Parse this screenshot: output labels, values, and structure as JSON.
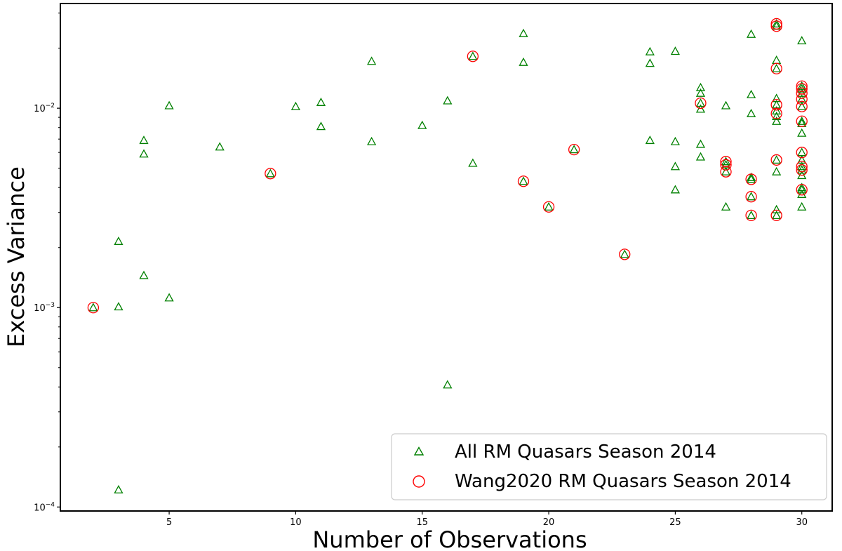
{
  "chart_data": {
    "type": "scatter",
    "title": "",
    "xlabel": "Number of Observations",
    "ylabel": "Excess Variance",
    "xlim": [
      0.7,
      31.2
    ],
    "ylim": [
      9.55e-05,
      0.0335
    ],
    "yscale": "log",
    "grid": false,
    "legend_position": "bottom-right",
    "x_ticks": [
      5,
      10,
      15,
      20,
      25,
      30
    ],
    "y_ticks": [
      {
        "value": 0.0001,
        "base": "10",
        "exponent": "−4"
      },
      {
        "value": 0.001,
        "base": "10",
        "exponent": "−3"
      },
      {
        "value": 0.01,
        "base": "10",
        "exponent": "−2"
      }
    ],
    "series": [
      {
        "name": "All RM Quasars Season 2014",
        "marker": "triangle-open",
        "color": "#008000",
        "points": [
          [
            2,
            0.001
          ],
          [
            3,
            0.00215
          ],
          [
            3,
            0.00101
          ],
          [
            3,
            0.000122
          ],
          [
            4,
            0.0069
          ],
          [
            4,
            0.0059
          ],
          [
            4,
            0.00145
          ],
          [
            5,
            0.0103
          ],
          [
            5,
            0.00112
          ],
          [
            7,
            0.0064
          ],
          [
            9,
            0.0047
          ],
          [
            10,
            0.0102
          ],
          [
            11,
            0.0107
          ],
          [
            11,
            0.0081
          ],
          [
            13,
            0.0172
          ],
          [
            13,
            0.0068
          ],
          [
            15,
            0.0082
          ],
          [
            16,
            0.0109
          ],
          [
            16,
            0.00041
          ],
          [
            17,
            0.0182
          ],
          [
            17,
            0.0053
          ],
          [
            19,
            0.0237
          ],
          [
            19,
            0.017
          ],
          [
            19,
            0.0043
          ],
          [
            20,
            0.0032
          ],
          [
            21,
            0.0062
          ],
          [
            23,
            0.00185
          ],
          [
            24,
            0.0192
          ],
          [
            24,
            0.0168
          ],
          [
            24,
            0.0069
          ],
          [
            25,
            0.0193
          ],
          [
            25,
            0.0068
          ],
          [
            25,
            0.0051
          ],
          [
            25,
            0.0039
          ],
          [
            26,
            0.0127
          ],
          [
            26,
            0.0119
          ],
          [
            26,
            0.0106
          ],
          [
            26,
            0.0099
          ],
          [
            26,
            0.0066
          ],
          [
            26,
            0.0057
          ],
          [
            27,
            0.0103
          ],
          [
            27,
            0.0054
          ],
          [
            27,
            0.0052
          ],
          [
            27,
            0.0048
          ],
          [
            27,
            0.0032
          ],
          [
            28,
            0.0235
          ],
          [
            28,
            0.0117
          ],
          [
            28,
            0.0094
          ],
          [
            28,
            0.0045
          ],
          [
            28,
            0.0044
          ],
          [
            28,
            0.0036
          ],
          [
            28,
            0.0029
          ],
          [
            29,
            0.0265
          ],
          [
            29,
            0.0258
          ],
          [
            29,
            0.0174
          ],
          [
            29,
            0.0158
          ],
          [
            29,
            0.0112
          ],
          [
            29,
            0.0104
          ],
          [
            29,
            0.0097
          ],
          [
            29,
            0.0091
          ],
          [
            29,
            0.0086
          ],
          [
            29,
            0.0055
          ],
          [
            29,
            0.0048
          ],
          [
            29,
            0.0031
          ],
          [
            29,
            0.0029
          ],
          [
            30,
            0.0218
          ],
          [
            30,
            0.0129
          ],
          [
            30,
            0.0125
          ],
          [
            30,
            0.0119
          ],
          [
            30,
            0.0111
          ],
          [
            30,
            0.0102
          ],
          [
            30,
            0.0086
          ],
          [
            30,
            0.0084
          ],
          [
            30,
            0.0075
          ],
          [
            30,
            0.006
          ],
          [
            30,
            0.0055
          ],
          [
            30,
            0.0051
          ],
          [
            30,
            0.0049
          ],
          [
            30,
            0.0046
          ],
          [
            30,
            0.004
          ],
          [
            30,
            0.0039
          ],
          [
            30,
            0.0037
          ],
          [
            30,
            0.0032
          ]
        ]
      },
      {
        "name": "Wang2020 RM Quasars Season 2014",
        "marker": "circle-open",
        "color": "#ff0000",
        "points": [
          [
            2,
            0.001
          ],
          [
            9,
            0.0047
          ],
          [
            17,
            0.0182
          ],
          [
            19,
            0.0043
          ],
          [
            20,
            0.0032
          ],
          [
            21,
            0.0062
          ],
          [
            23,
            0.00185
          ],
          [
            26,
            0.0106
          ],
          [
            27,
            0.0054
          ],
          [
            27,
            0.0052
          ],
          [
            27,
            0.0048
          ],
          [
            28,
            0.0044
          ],
          [
            28,
            0.0036
          ],
          [
            28,
            0.0029
          ],
          [
            29,
            0.0265
          ],
          [
            29,
            0.0258
          ],
          [
            29,
            0.0158
          ],
          [
            29,
            0.0104
          ],
          [
            29,
            0.0094
          ],
          [
            29,
            0.0055
          ],
          [
            29,
            0.0029
          ],
          [
            30,
            0.0129
          ],
          [
            30,
            0.0125
          ],
          [
            30,
            0.0119
          ],
          [
            30,
            0.0111
          ],
          [
            30,
            0.0102
          ],
          [
            30,
            0.0086
          ],
          [
            30,
            0.006
          ],
          [
            30,
            0.0051
          ],
          [
            30,
            0.0049
          ],
          [
            30,
            0.0039
          ]
        ]
      }
    ]
  }
}
